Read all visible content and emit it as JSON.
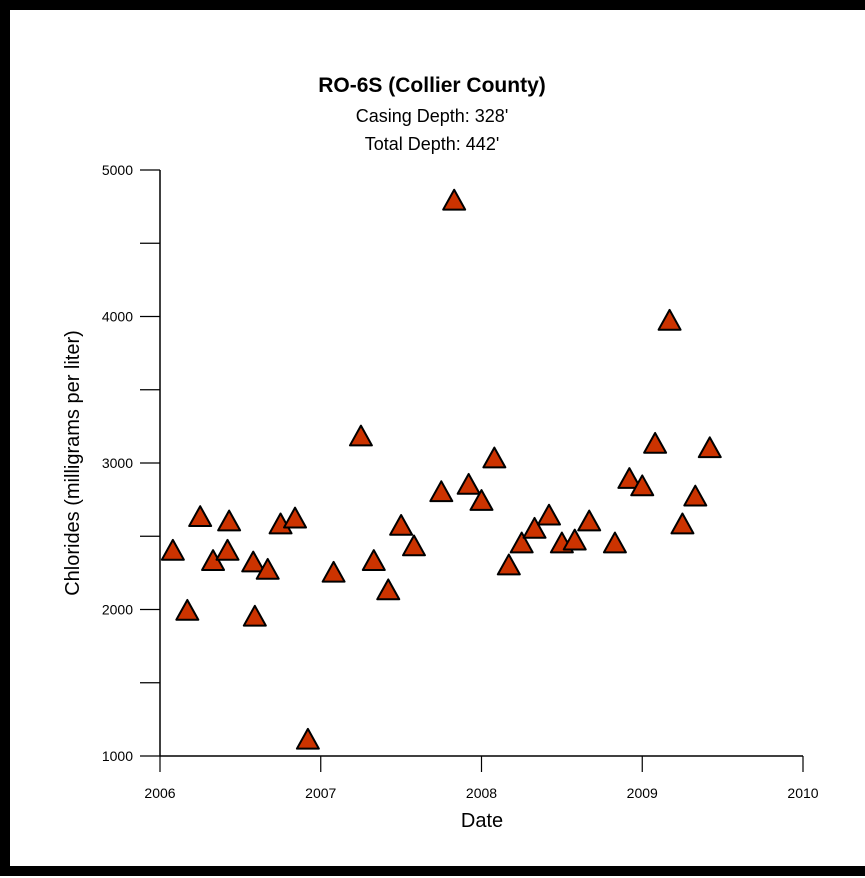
{
  "chart_data": {
    "type": "scatter",
    "title": "RO-6S (Collier County)",
    "subtitle_lines": [
      "Casing Depth:  328'",
      "Total Depth:  442'"
    ],
    "xlabel": "Date",
    "ylabel": "Chlorides (milligrams per liter)",
    "xlim": [
      2006,
      2010
    ],
    "ylim": [
      1000,
      5000
    ],
    "x_ticks": [
      "2006",
      "2007",
      "2008",
      "2009",
      "2010"
    ],
    "y_ticks": [
      "1000",
      "2000",
      "3000",
      "4000",
      "5000"
    ],
    "grid": false,
    "legend": false,
    "marker": "triangle",
    "marker_color": "#cc3300",
    "marker_edge_color": "#000000",
    "points": [
      {
        "x": 2006.08,
        "y": 2400
      },
      {
        "x": 2006.17,
        "y": 1990
      },
      {
        "x": 2006.25,
        "y": 2630
      },
      {
        "x": 2006.33,
        "y": 2330
      },
      {
        "x": 2006.42,
        "y": 2400
      },
      {
        "x": 2006.43,
        "y": 2600
      },
      {
        "x": 2006.58,
        "y": 2320
      },
      {
        "x": 2006.59,
        "y": 1950
      },
      {
        "x": 2006.67,
        "y": 2270
      },
      {
        "x": 2006.75,
        "y": 2580
      },
      {
        "x": 2006.84,
        "y": 2620
      },
      {
        "x": 2006.92,
        "y": 1110
      },
      {
        "x": 2007.08,
        "y": 2250
      },
      {
        "x": 2007.25,
        "y": 3180
      },
      {
        "x": 2007.33,
        "y": 2330
      },
      {
        "x": 2007.42,
        "y": 2130
      },
      {
        "x": 2007.5,
        "y": 2570
      },
      {
        "x": 2007.58,
        "y": 2430
      },
      {
        "x": 2007.75,
        "y": 2800
      },
      {
        "x": 2007.83,
        "y": 4790
      },
      {
        "x": 2007.92,
        "y": 2850
      },
      {
        "x": 2008.0,
        "y": 2740
      },
      {
        "x": 2008.08,
        "y": 3030
      },
      {
        "x": 2008.17,
        "y": 2300
      },
      {
        "x": 2008.25,
        "y": 2450
      },
      {
        "x": 2008.33,
        "y": 2550
      },
      {
        "x": 2008.42,
        "y": 2640
      },
      {
        "x": 2008.5,
        "y": 2450
      },
      {
        "x": 2008.58,
        "y": 2470
      },
      {
        "x": 2008.67,
        "y": 2600
      },
      {
        "x": 2008.83,
        "y": 2450
      },
      {
        "x": 2008.92,
        "y": 2890
      },
      {
        "x": 2009.0,
        "y": 2840
      },
      {
        "x": 2009.08,
        "y": 3130
      },
      {
        "x": 2009.17,
        "y": 3970
      },
      {
        "x": 2009.25,
        "y": 2580
      },
      {
        "x": 2009.33,
        "y": 2770
      },
      {
        "x": 2009.42,
        "y": 3100
      }
    ]
  }
}
